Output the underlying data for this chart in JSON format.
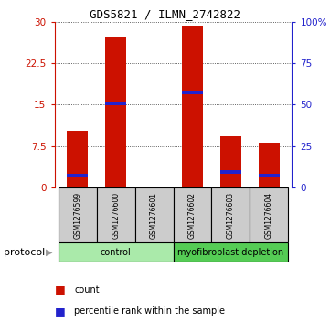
{
  "title": "GDS5821 / ILMN_2742822",
  "samples": [
    "GSM1276599",
    "GSM1276600",
    "GSM1276601",
    "GSM1276602",
    "GSM1276603",
    "GSM1276604"
  ],
  "counts": [
    10.2,
    27.2,
    0.08,
    29.2,
    9.2,
    8.1
  ],
  "percentile_ranks": [
    7.5,
    50.5,
    0.0,
    57.0,
    9.5,
    7.5
  ],
  "groups": [
    {
      "label": "control",
      "start": 0,
      "end": 3,
      "color": "#AAEAAA"
    },
    {
      "label": "myofibroblast depletion",
      "start": 3,
      "end": 6,
      "color": "#55CC55"
    }
  ],
  "ylim_left": [
    0,
    30
  ],
  "ylim_right": [
    0,
    100
  ],
  "yticks_left": [
    0,
    7.5,
    15,
    22.5,
    30
  ],
  "yticks_right": [
    0,
    25,
    50,
    75,
    100
  ],
  "bar_color": "#CC1100",
  "percentile_color": "#2222CC",
  "bar_width": 0.55,
  "label_color_left": "#CC1100",
  "label_color_right": "#2222CC",
  "legend_count_label": "count",
  "legend_percentile_label": "percentile rank within the sample",
  "protocol_label": "protocol",
  "title_fontsize": 9,
  "tick_fontsize": 7.5,
  "sample_fontsize": 5.5,
  "protocol_fontsize": 8,
  "legend_fontsize": 7
}
